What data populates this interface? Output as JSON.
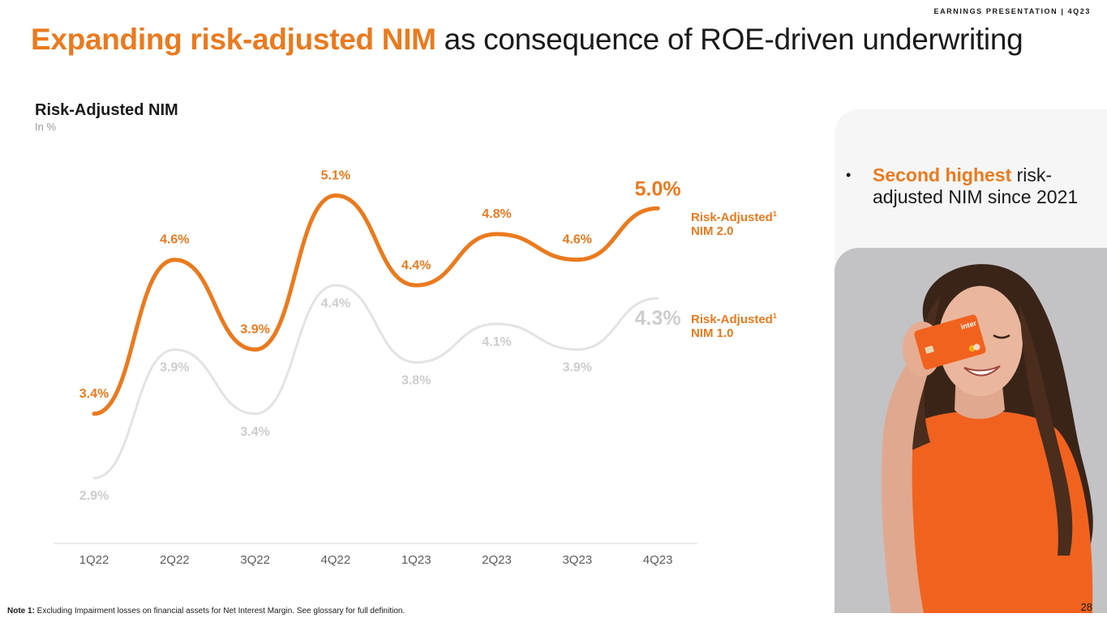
{
  "header": {
    "tag": "EARNINGS PRESENTATION | 4Q23",
    "title_accent": "Expanding risk-adjusted NIM",
    "title_rest": " as consequence of ROE-driven underwriting"
  },
  "chart_data": {
    "type": "line",
    "title": "Risk-Adjusted NIM",
    "subtitle": "In %",
    "categories": [
      "1Q22",
      "2Q22",
      "3Q22",
      "4Q22",
      "1Q23",
      "2Q23",
      "3Q23",
      "4Q23"
    ],
    "series": [
      {
        "name": "Risk-Adjusted NIM 2.0",
        "name_line1": "Risk-Adjusted",
        "name_line2": "NIM 2.0",
        "footnote_mark": "1",
        "color": "#ea7a1e",
        "values": [
          3.4,
          4.6,
          3.9,
          5.1,
          4.4,
          4.8,
          4.6,
          5.0
        ],
        "labels": [
          "3.4%",
          "4.6%",
          "3.9%",
          "5.1%",
          "4.4%",
          "4.8%",
          "4.6%",
          "5.0%"
        ]
      },
      {
        "name": "Risk-Adjusted NIM 1.0",
        "name_line1": "Risk-Adjusted",
        "name_line2": "NIM 1.0",
        "footnote_mark": "1",
        "color": "#e3e3e3",
        "label_color": "#cdcdcd",
        "values": [
          2.9,
          3.9,
          3.4,
          4.4,
          3.8,
          4.1,
          3.9,
          4.3
        ],
        "labels": [
          "2.9%",
          "3.9%",
          "3.4%",
          "4.4%",
          "3.8%",
          "4.1%",
          "3.9%",
          "4.3%"
        ]
      }
    ],
    "xlabel": "",
    "ylabel": "",
    "grid": false,
    "legend": "right, inline at line ends"
  },
  "panel": {
    "bullet_highlight": "Second highest",
    "bullet_rest": " risk-adjusted NIM since 2021",
    "photo_alt": "Woman in orange top holding an orange credit card over one eye"
  },
  "card": {
    "brand": "inter"
  },
  "footer": {
    "note_label": "Note 1:",
    "note_text": " Excluding Impairment losses on financial assets for Net Interest Margin. See glossary for full definition.",
    "page_number": "28"
  },
  "colors": {
    "accent": "#ea7a1e",
    "secondary_line": "#e3e3e3",
    "panel_bg": "#f6f6f6",
    "photo_bg": "#c3c3c5"
  }
}
